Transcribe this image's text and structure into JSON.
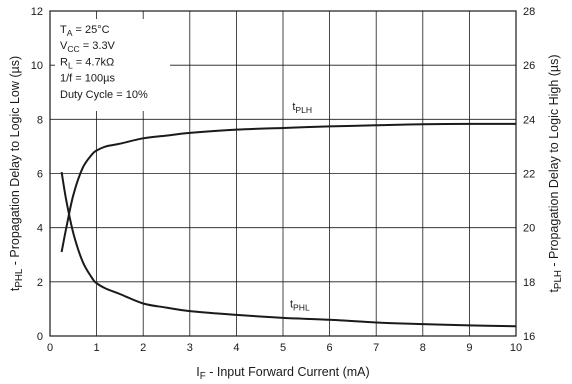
{
  "chart_data": {
    "type": "line",
    "xlabel": "I",
    "xlabel_sub": "F",
    "xlabel_rest": " - Input Forward Current (mA)",
    "ylabel_left": "t",
    "ylabel_left_sub": "PHL",
    "ylabel_left_rest": " - Propagation Delay to Logic Low (µs)",
    "ylabel_right": "t",
    "ylabel_right_sub": "PLH",
    "ylabel_right_rest": " - Propagation Delay to Logic High (µs)",
    "xlim": [
      0,
      10
    ],
    "ylim_left": [
      0,
      12
    ],
    "ylim_right": [
      16,
      28
    ],
    "x_ticks": [
      0,
      1,
      2,
      3,
      4,
      5,
      6,
      7,
      8,
      9,
      10
    ],
    "y_left_ticks": [
      0,
      2,
      4,
      6,
      8,
      10,
      12
    ],
    "y_right_ticks": [
      16,
      18,
      20,
      22,
      24,
      26,
      28
    ],
    "grid": true,
    "conditions": [
      {
        "main": "T",
        "sub": "A",
        "rest": " = 25°C"
      },
      {
        "main": "V",
        "sub": "CC",
        "rest": " = 3.3V"
      },
      {
        "main": "R",
        "sub": "L",
        "rest": " = 4.7kΩ"
      },
      {
        "main": "1/f = 100µs",
        "sub": "",
        "rest": ""
      },
      {
        "main": "Duty Cycle = 10%",
        "sub": "",
        "rest": ""
      }
    ],
    "series": [
      {
        "name": "tPLH",
        "label_main": "t",
        "label_sub": "PLH",
        "axis": "right",
        "x": [
          0.25,
          0.35,
          0.5,
          0.7,
          0.9,
          1.0,
          1.2,
          1.5,
          2.0,
          2.5,
          3.0,
          4.0,
          5.0,
          6.0,
          7.0,
          8.0,
          9.0,
          10.0
        ],
        "y": [
          19.1,
          20.0,
          21.2,
          22.2,
          22.7,
          22.85,
          23.0,
          23.1,
          23.3,
          23.4,
          23.5,
          23.62,
          23.68,
          23.74,
          23.78,
          23.82,
          23.83,
          23.83
        ]
      },
      {
        "name": "tPHL",
        "label_main": "t",
        "label_sub": "PHL",
        "axis": "left",
        "x": [
          0.25,
          0.35,
          0.5,
          0.7,
          0.9,
          1.0,
          1.2,
          1.5,
          2.0,
          2.5,
          3.0,
          4.0,
          5.0,
          6.0,
          7.0,
          8.0,
          9.0,
          10.0
        ],
        "y": [
          6.05,
          5.0,
          3.8,
          2.75,
          2.15,
          1.95,
          1.75,
          1.55,
          1.2,
          1.05,
          0.92,
          0.78,
          0.67,
          0.6,
          0.5,
          0.44,
          0.39,
          0.36
        ]
      }
    ]
  }
}
